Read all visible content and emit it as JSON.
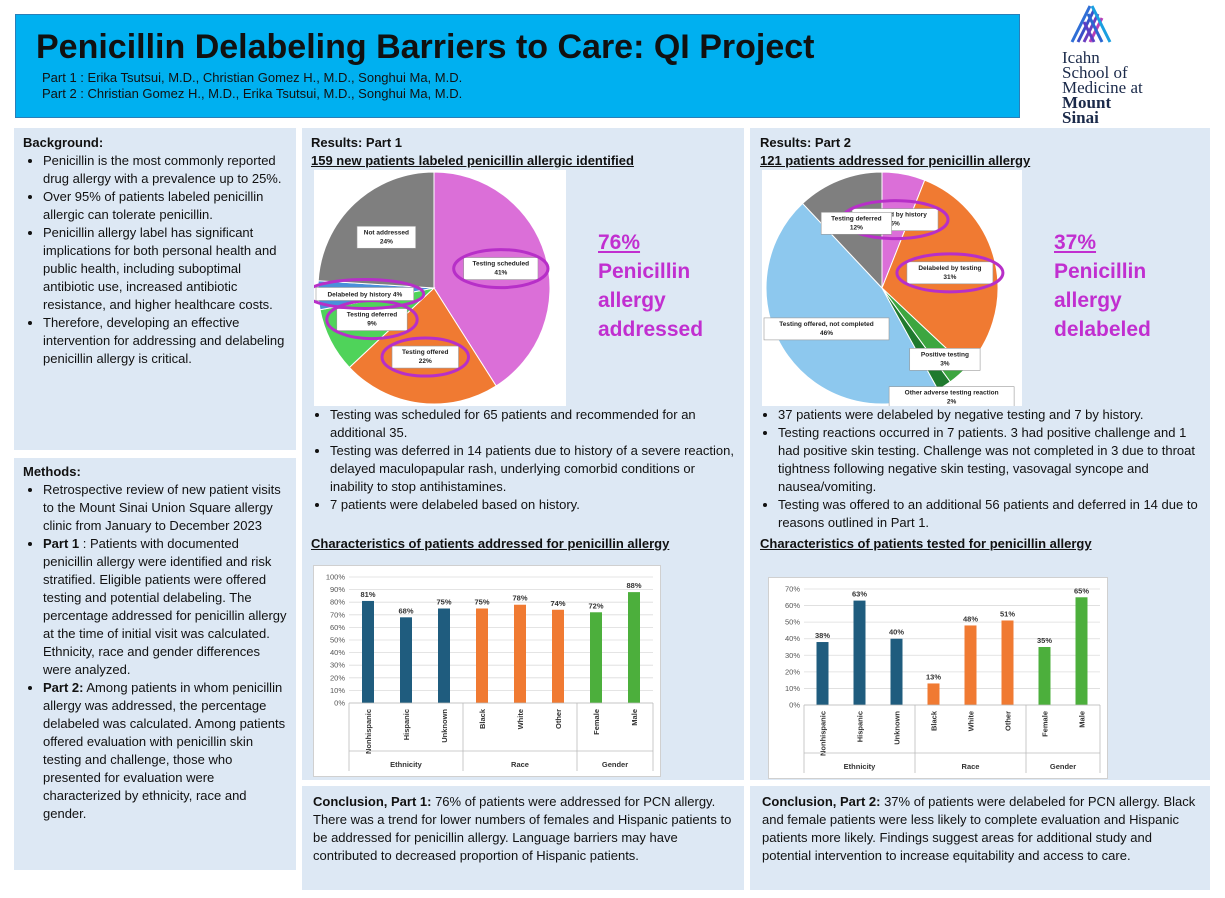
{
  "header": {
    "title": "Penicillin Delabeling Barriers to Care: QI Project",
    "authors": [
      "Part 1 : Erika Tsutsui, M.D., Christian Gomez H., M.D., Songhui Ma, M.D.",
      "Part 2 : Christian Gomez H., M.D., Erika Tsutsui, M.D., Songhui Ma, M.D."
    ]
  },
  "logo": [
    "Icahn",
    "School of",
    "Medicine at",
    "Mount",
    "Sinai"
  ],
  "background": {
    "heading": "Background:",
    "bullets": [
      "Penicillin is the most commonly reported drug allergy with a prevalence up to 25%.",
      "Over 95% of patients labeled penicillin allergic can tolerate penicillin.",
      "Penicillin allergy label has significant implications for both personal health and public health, including suboptimal antibiotic use, increased antibiotic resistance, and higher healthcare costs.",
      "Therefore, developing an effective intervention for addressing and delabeling penicillin allergy is critical."
    ]
  },
  "methods": {
    "heading": "Methods:",
    "bullets": [
      "Retrospective review of new patient visits to the Mount Sinai Union Square allergy clinic from January to December 2023",
      {
        "lead": "Part 1",
        "text": " : Patients with documented penicillin allergy were identified and risk stratified.  Eligible patients were offered testing and potential delabeling.  The percentage addressed for penicillin allergy at the time of initial visit was calculated.  Ethnicity, race and gender differences were analyzed."
      },
      {
        "lead": "Part 2:",
        "text": " Among patients in whom penicillin allergy was addressed, the percentage delabeled was calculated.  Among patients offered evaluation with penicillin skin testing and challenge, those who presented for evaluation were characterized by ethnicity, race and gender."
      }
    ]
  },
  "results_1": {
    "heading": "Results: Part 1",
    "subheading": "159 new patients labeled penicillin allergic identified",
    "callout_percent": "76%",
    "callout_text": "Penicillin allergy addressed",
    "bullets": [
      "Testing was scheduled for 65 patients and recommended for an additional 35.",
      "Testing was deferred in 14 patients due to history of a severe reaction, delayed maculopapular rash, underlying comorbid conditions or inability to stop antihistamines.",
      "7 patients were delabeled based on history."
    ],
    "characteristics_heading": "Characteristics of patients addressed for penicillin allergy"
  },
  "results_2": {
    "heading": "Results:  Part 2",
    "subheading": "121 patients addressed for penicillin allergy",
    "callout_percent": "37%",
    "callout_text": "Penicillin allergy delabeled",
    "bullets": [
      "37 patients were delabeled by negative testing and 7 by history.",
      "Testing reactions occurred in 7 patients. 3 had positive challenge and 1 had positive skin testing.  Challenge was not completed in 3 due to throat tightness following negative skin testing, vasovagal syncope and nausea/vomiting.",
      "Testing was offered to an additional 56 patients and deferred in 14 due to reasons outlined in Part 1."
    ],
    "characteristics_heading": "Characteristics of patients tested for penicillin allergy"
  },
  "conclusion_1": {
    "lead": "Conclusion,  Part 1:",
    "text": " 76% of patients were addressed for PCN allergy. There was a trend for lower numbers of females and Hispanic patients to be addressed for penicillin allergy.  Language barriers may have contributed to decreased proportion of Hispanic patients."
  },
  "conclusion_2": {
    "lead": "Conclusion,  Part 2:",
    "text": " 37% of patients were delabeled for PCN allergy. Black and female patients were less likely to complete evaluation and Hispanic patients more likely.  Findings suggest areas for additional study and potential intervention to increase equitability and access to care."
  },
  "chart_data": [
    {
      "type": "pie",
      "categories": [
        "Testing scheduled",
        "Testing offered",
        "Testing deferred",
        "Delabeled by history 4%",
        "Not addressed"
      ],
      "values": [
        41,
        22,
        9,
        4,
        24
      ],
      "value_labels": [
        "41%",
        "22%",
        "9%",
        null,
        "24%"
      ],
      "colors": [
        "#db6fd8",
        "#f07a32",
        "#4fd35a",
        "#4a90d9",
        "#7f7f7f"
      ]
    },
    {
      "type": "pie",
      "categories": [
        "Delabeled by history",
        "Delabeled by testing",
        "Positive testing",
        "Other adverse testing reaction",
        "Testing offered, not completed",
        "Testing deferred"
      ],
      "values": [
        6,
        31,
        3,
        2,
        46,
        12
      ],
      "value_labels": [
        "6%",
        "31%",
        "3%",
        "2%",
        "46%",
        "12%"
      ],
      "colors": [
        "#db6fd8",
        "#f07a32",
        "#3da640",
        "#1f7a2e",
        "#8dc8ee",
        "#7f7f7f"
      ]
    },
    {
      "type": "bar",
      "ylim": [
        0,
        100
      ],
      "yticks": [
        {
          "value": 0,
          "label": "0%"
        },
        {
          "value": 10,
          "label": "10%"
        },
        {
          "value": 20,
          "label": "20%"
        },
        {
          "value": 30,
          "label": "30%"
        },
        {
          "value": 40,
          "label": "40%"
        },
        {
          "value": 50,
          "label": "50%"
        },
        {
          "value": 60,
          "label": "60%"
        },
        {
          "value": 70,
          "label": "70%"
        },
        {
          "value": 80,
          "label": "80%"
        },
        {
          "value": 90,
          "label": "90%"
        },
        {
          "value": 100,
          "label": "100%"
        }
      ],
      "grid": true,
      "groups": [
        {
          "name": "Ethnicity",
          "color": "#1f5c7e",
          "categories": [
            "Nonhispanic",
            "Hispanic",
            "Unknown"
          ],
          "values": [
            81,
            68,
            75
          ],
          "value_labels": [
            "81%",
            "68%",
            "75%"
          ]
        },
        {
          "name": "Race",
          "color": "#f07a32",
          "categories": [
            "Black",
            "White",
            "Other"
          ],
          "values": [
            75,
            78,
            74
          ],
          "value_labels": [
            "75%",
            "78%",
            "74%"
          ]
        },
        {
          "name": "Gender",
          "color": "#4caf3c",
          "categories": [
            "Female",
            "Male"
          ],
          "values": [
            72,
            88
          ],
          "value_labels": [
            "72%",
            "88%"
          ]
        }
      ]
    },
    {
      "type": "bar",
      "ylim": [
        0,
        70
      ],
      "yticks": [
        {
          "value": 0,
          "label": "0%"
        },
        {
          "value": 10,
          "label": "10%"
        },
        {
          "value": 20,
          "label": "20%"
        },
        {
          "value": 30,
          "label": "30%"
        },
        {
          "value": 40,
          "label": "40%"
        },
        {
          "value": 50,
          "label": "50%"
        },
        {
          "value": 60,
          "label": "60%"
        },
        {
          "value": 70,
          "label": "70%"
        }
      ],
      "grid": true,
      "groups": [
        {
          "name": "Ethnicity",
          "color": "#1f5c7e",
          "categories": [
            "Nonhispanic",
            "Hispanic",
            "Unknown"
          ],
          "values": [
            38,
            63,
            40
          ],
          "value_labels": [
            "38%",
            "63%",
            "40%"
          ]
        },
        {
          "name": "Race",
          "color": "#f07a32",
          "categories": [
            "Black",
            "White",
            "Other"
          ],
          "values": [
            13,
            48,
            51
          ],
          "value_labels": [
            "13%",
            "48%",
            "51%"
          ]
        },
        {
          "name": "Gender",
          "color": "#4caf3c",
          "categories": [
            "Female",
            "Male"
          ],
          "values": [
            35,
            65
          ],
          "value_labels": [
            "35%",
            "65%"
          ]
        }
      ]
    }
  ]
}
